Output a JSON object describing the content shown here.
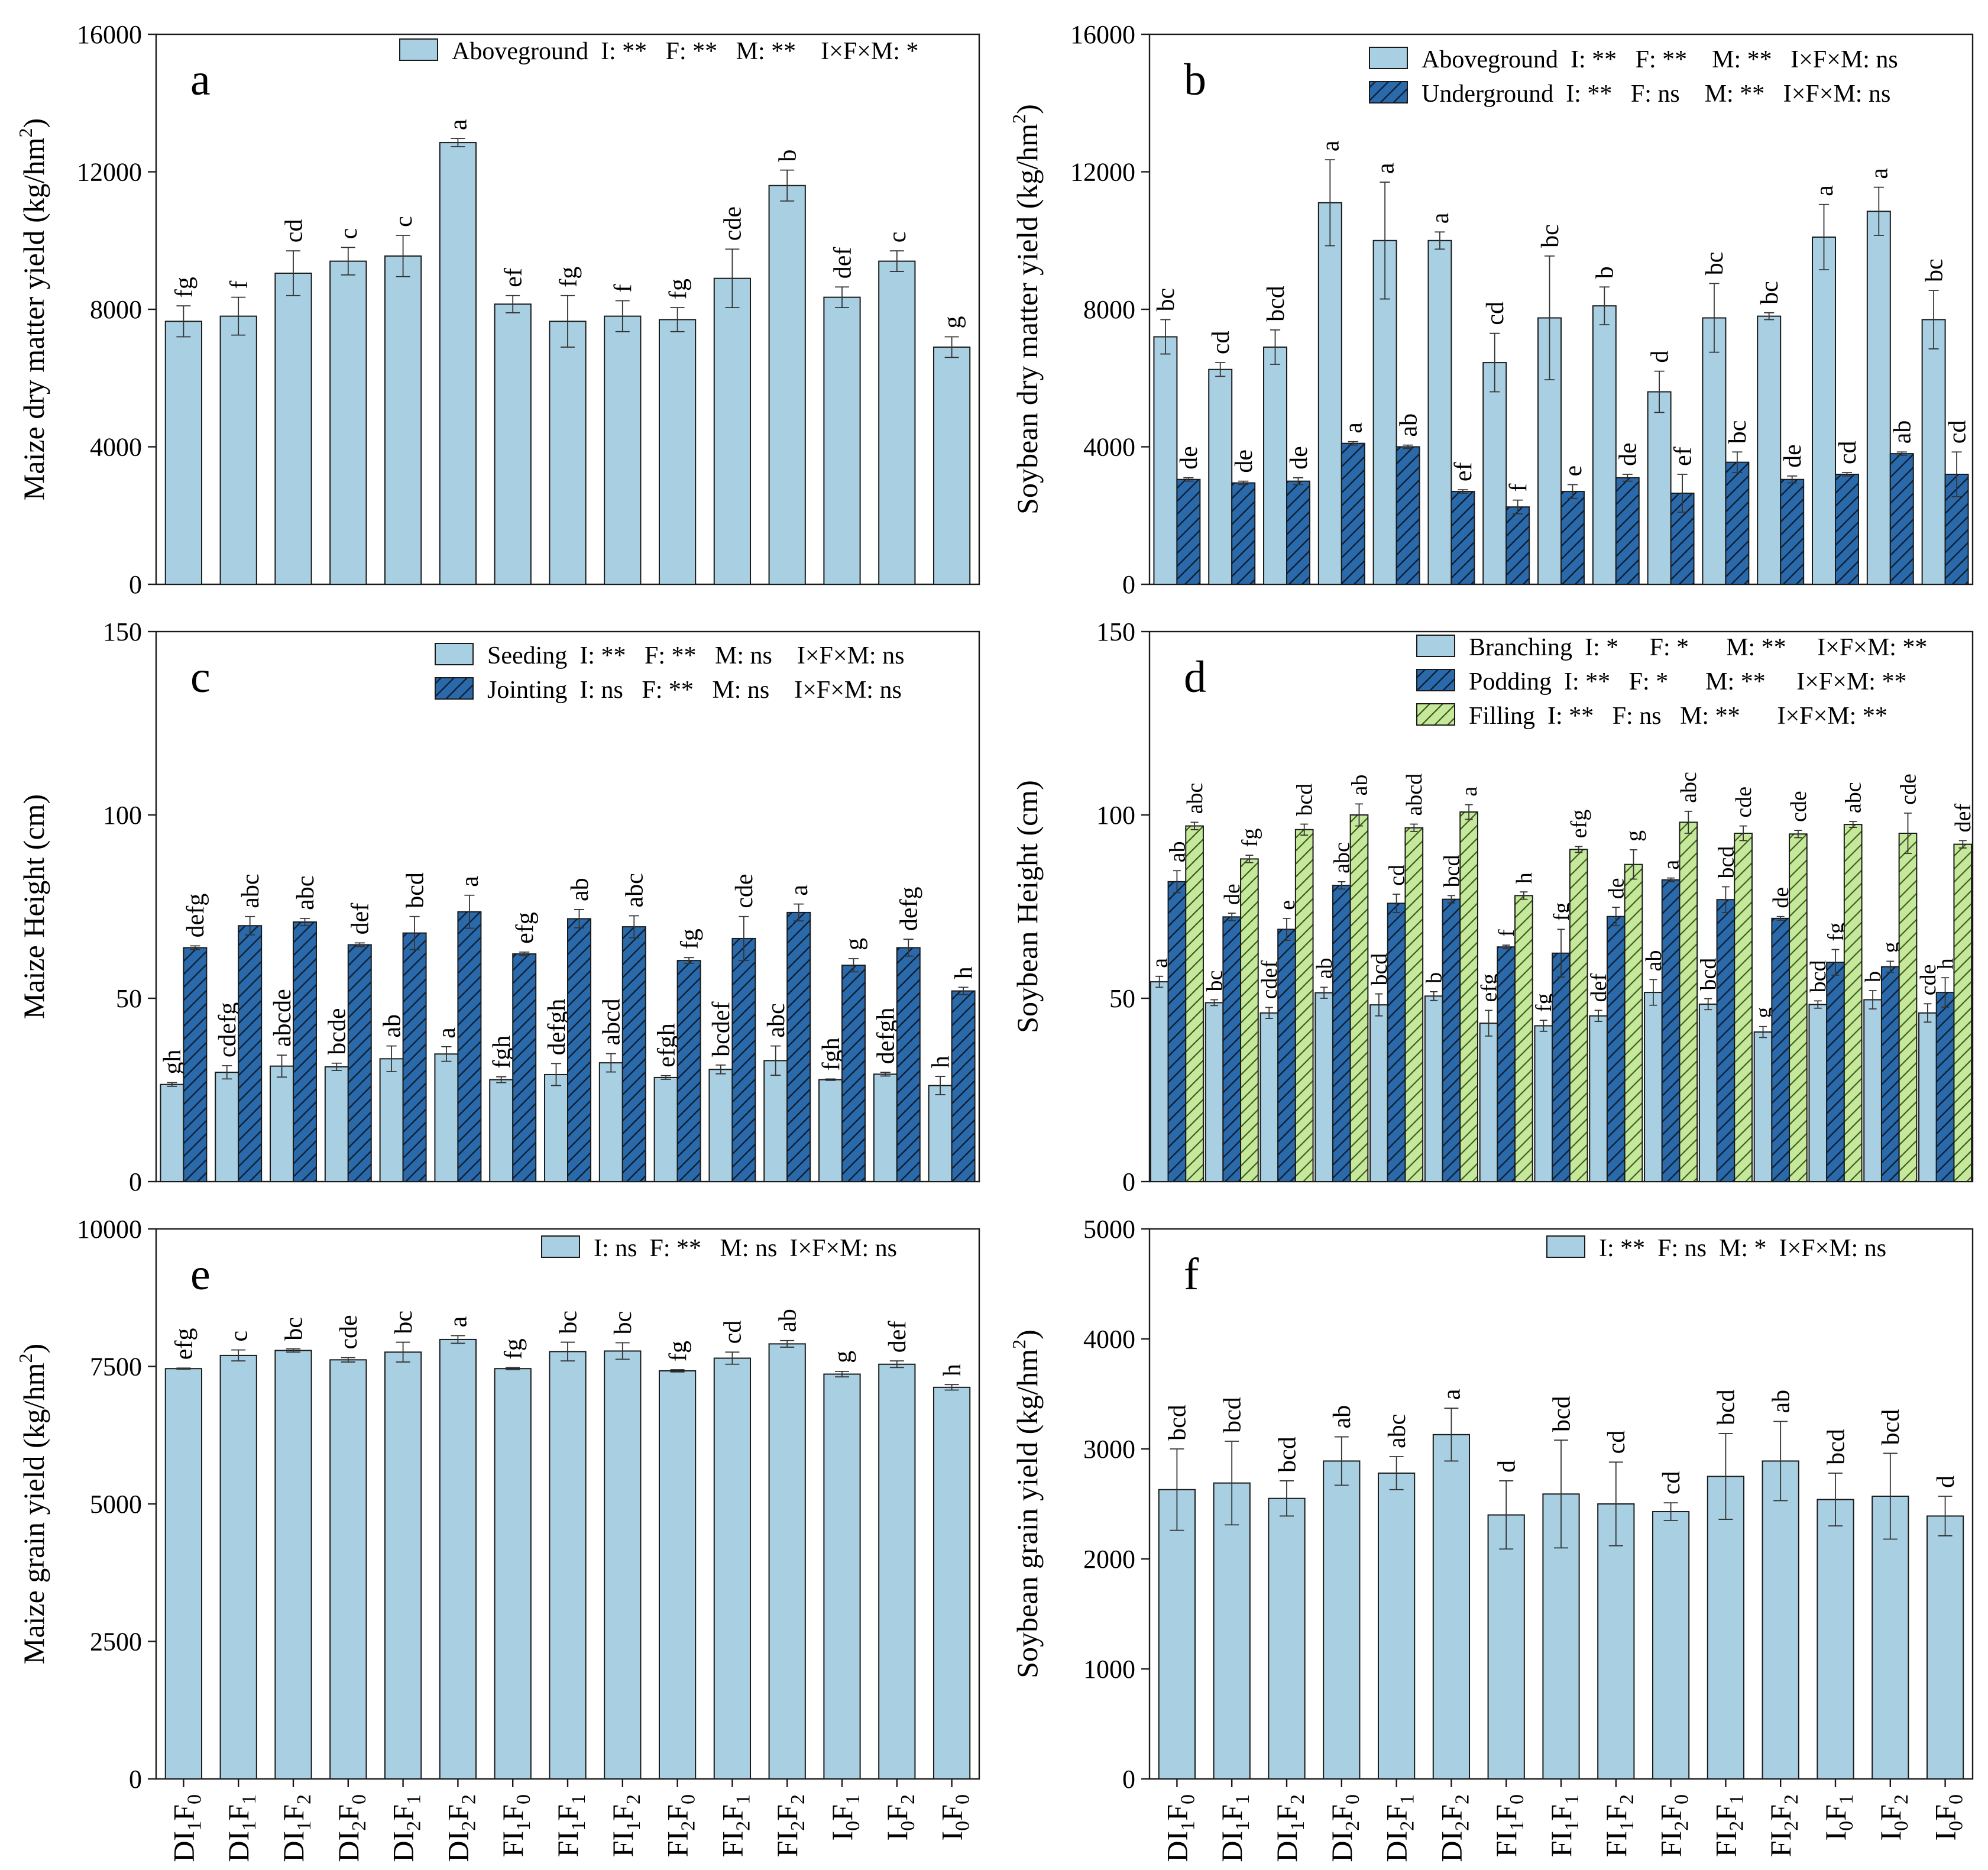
{
  "colors": {
    "light": "#a8cfe2",
    "dark": "#2b6aaa",
    "green": "#c5e89a",
    "stroke": "#1a1a1a",
    "hatch": "#0c1f36"
  },
  "categories": [
    {
      "base": "DI",
      "s1": "1",
      "mid": "F",
      "s2": "0"
    },
    {
      "base": "DI",
      "s1": "1",
      "mid": "F",
      "s2": "1"
    },
    {
      "base": "DI",
      "s1": "1",
      "mid": "F",
      "s2": "2"
    },
    {
      "base": "DI",
      "s1": "2",
      "mid": "F",
      "s2": "0"
    },
    {
      "base": "DI",
      "s1": "2",
      "mid": "F",
      "s2": "1"
    },
    {
      "base": "DI",
      "s1": "2",
      "mid": "F",
      "s2": "2"
    },
    {
      "base": "FI",
      "s1": "1",
      "mid": "F",
      "s2": "0"
    },
    {
      "base": "FI",
      "s1": "1",
      "mid": "F",
      "s2": "1"
    },
    {
      "base": "FI",
      "s1": "1",
      "mid": "F",
      "s2": "2"
    },
    {
      "base": "FI",
      "s1": "2",
      "mid": "F",
      "s2": "0"
    },
    {
      "base": "FI",
      "s1": "2",
      "mid": "F",
      "s2": "1"
    },
    {
      "base": "FI",
      "s1": "2",
      "mid": "F",
      "s2": "2"
    },
    {
      "base": "I",
      "s1": "0",
      "mid": "F",
      "s2": "1"
    },
    {
      "base": "I",
      "s1": "0",
      "mid": "F",
      "s2": "2"
    },
    {
      "base": "I",
      "s1": "0",
      "mid": "F",
      "s2": "0"
    }
  ],
  "chart_data": [
    {
      "id": "a",
      "type": "bar",
      "panel_letter": "a",
      "ylabel": "Maize dry matter yield (kg/hm",
      "ylabel_sup": "2",
      "ylabel_end": ")",
      "ylim": [
        0,
        16000
      ],
      "yticks": [
        0,
        4000,
        8000,
        12000,
        16000
      ],
      "series": [
        {
          "name": "Aboveground",
          "style": "light",
          "stats": "I: **   F: **   M: **    I×F×M: *",
          "values": [
            7650,
            7800,
            9050,
            9400,
            9550,
            12850,
            8150,
            7650,
            7800,
            7700,
            8900,
            11600,
            8350,
            9400,
            6900
          ],
          "errors": [
            450,
            550,
            650,
            400,
            600,
            120,
            250,
            750,
            450,
            350,
            850,
            450,
            300,
            300,
            300
          ],
          "letters": [
            "fg",
            "f",
            "cd",
            "c",
            "c",
            "a",
            "ef",
            "fg",
            "f",
            "fg",
            "cde",
            "b",
            "def",
            "c",
            "g"
          ]
        }
      ]
    },
    {
      "id": "b",
      "type": "bar",
      "panel_letter": "b",
      "ylabel": "Soybean dry matter yield (kg/hm",
      "ylabel_sup": "2",
      "ylabel_end": ")",
      "ylim": [
        0,
        16000
      ],
      "yticks": [
        0,
        4000,
        8000,
        12000,
        16000
      ],
      "series": [
        {
          "name": "Aboveground",
          "style": "light",
          "stats": "I: **   F: **    M: **   I×F×M: ns",
          "values": [
            7200,
            6250,
            6900,
            11100,
            10000,
            10000,
            6450,
            7750,
            8100,
            5600,
            7750,
            7800,
            10100,
            10850,
            7700
          ],
          "errors": [
            500,
            200,
            500,
            1250,
            1700,
            250,
            850,
            1800,
            550,
            600,
            1000,
            100,
            950,
            700,
            850
          ],
          "letters": [
            "bc",
            "cd",
            "bcd",
            "a",
            "a",
            "a",
            "cd",
            "bc",
            "b",
            "d",
            "bc",
            "bc",
            "a",
            "a",
            "bc"
          ]
        },
        {
          "name": "Underground",
          "style": "dark",
          "stats": "I: **   F: ns    M: **   I×F×M: ns",
          "values": [
            3050,
            2950,
            3000,
            4100,
            4000,
            2700,
            2250,
            2700,
            3100,
            2650,
            3550,
            3050,
            3200,
            3800,
            3200
          ],
          "errors": [
            50,
            50,
            100,
            50,
            50,
            50,
            200,
            200,
            100,
            550,
            300,
            100,
            50,
            50,
            650
          ],
          "letters": [
            "de",
            "de",
            "de",
            "a",
            "ab",
            "ef",
            "f",
            "e",
            "de",
            "ef",
            "bc",
            "de",
            "cd",
            "ab",
            "cd"
          ]
        }
      ]
    },
    {
      "id": "c",
      "type": "bar",
      "panel_letter": "c",
      "ylabel": "Maize Height (cm)",
      "ylim": [
        0,
        150
      ],
      "yticks": [
        0,
        50,
        100,
        150
      ],
      "series": [
        {
          "name": "Seeding",
          "style": "light",
          "stats": "I: **   F: **   M: ns    I×F×M: ns",
          "values": [
            26.5,
            29.8,
            31.5,
            31.3,
            33.5,
            34.8,
            27.8,
            29.2,
            32.4,
            28.4,
            30.6,
            33.0,
            27.8,
            29.3,
            26.2
          ],
          "errors": [
            0.5,
            1.8,
            3.0,
            1.0,
            3.5,
            2.0,
            0.8,
            3.0,
            2.5,
            0.5,
            1.2,
            4.0,
            0.2,
            0.5,
            2.5
          ],
          "letters": [
            "gh",
            "cdefg",
            "abcde",
            "bcde",
            "ab",
            "a",
            "fgh",
            "defgh",
            "abcd",
            "efgh",
            "bcdef",
            "abc",
            "fgh",
            "defgh",
            "h"
          ]
        },
        {
          "name": "Jointing",
          "style": "dark",
          "stats": "I: ns   F: **   M: ns    I×F×M: ns",
          "values": [
            63.8,
            69.8,
            70.8,
            64.6,
            67.8,
            73.6,
            62.1,
            71.7,
            69.5,
            60.3,
            66.3,
            73.4,
            59.0,
            63.8,
            52.0
          ],
          "errors": [
            0.5,
            2.5,
            1.0,
            0.5,
            4.5,
            4.5,
            0.5,
            2.5,
            3.0,
            0.8,
            6.0,
            2.3,
            1.8,
            2.3,
            1.0
          ],
          "letters": [
            "defg",
            "abc",
            "abc",
            "def",
            "bcd",
            "a",
            "efg",
            "ab",
            "abc",
            "fg",
            "cde",
            "a",
            "g",
            "defg",
            "h"
          ]
        }
      ]
    },
    {
      "id": "d",
      "type": "bar",
      "panel_letter": "d",
      "ylabel": "Soybean Height (cm)",
      "ylim": [
        0,
        150
      ],
      "yticks": [
        0,
        50,
        100,
        150
      ],
      "series": [
        {
          "name": "Branching",
          "style": "light",
          "stats": "I: *     F: *      M: **     I×F×M: **",
          "values": [
            54.5,
            48.8,
            46.0,
            51.5,
            48.2,
            50.6,
            43.2,
            42.5,
            45.2,
            51.6,
            48.4,
            40.8,
            48.3,
            49.6,
            46.0
          ],
          "errors": [
            1.5,
            0.8,
            1.5,
            1.5,
            3.0,
            1.2,
            3.5,
            1.5,
            1.5,
            3.5,
            1.5,
            1.5,
            1.0,
            2.5,
            2.5
          ],
          "letters": [
            "a",
            "bc",
            "cdef",
            "ab",
            "bcd",
            "b",
            "efg",
            "fg",
            "def",
            "ab",
            "bcd",
            "g",
            "bcd",
            "b",
            "cde"
          ]
        },
        {
          "name": "Podding",
          "style": "dark",
          "stats": "I: **   F: *      M: **     I×F×M: **",
          "values": [
            81.8,
            72.2,
            68.8,
            80.8,
            75.9,
            77.0,
            64.0,
            62.3,
            72.3,
            82.3,
            76.9,
            71.8,
            59.8,
            58.6,
            51.6
          ],
          "errors": [
            3.0,
            1.0,
            3.0,
            1.0,
            2.5,
            1.0,
            0.5,
            6.5,
            2.5,
            0.5,
            3.5,
            0.5,
            3.5,
            1.5,
            4.0
          ],
          "letters": [
            "ab",
            "de",
            "e",
            "abc",
            "cd",
            "bcd",
            "f",
            "fg",
            "de",
            "a",
            "bcd",
            "de",
            "fg",
            "g",
            "h"
          ]
        },
        {
          "name": "Filling",
          "style": "green",
          "stats": "I: **   F: ns   M: **      I×F×M: **",
          "values": [
            97.0,
            88.0,
            96.0,
            100.0,
            96.5,
            100.8,
            78.0,
            90.6,
            86.5,
            98.0,
            95.0,
            94.8,
            97.4,
            95.0,
            92.0
          ],
          "errors": [
            1.0,
            1.0,
            1.5,
            3.0,
            1.0,
            2.0,
            1.0,
            0.8,
            4.0,
            3.0,
            2.0,
            1.0,
            0.8,
            5.5,
            1.0
          ],
          "letters": [
            "abc",
            "fg",
            "bcd",
            "ab",
            "abcd",
            "a",
            "h",
            "efg",
            "g",
            "abc",
            "cde",
            "cde",
            "abc",
            "cde",
            "def"
          ]
        }
      ]
    },
    {
      "id": "e",
      "type": "bar",
      "panel_letter": "e",
      "ylabel": "Maize grain yield (kg/hm",
      "ylabel_sup": "2",
      "ylabel_end": ")",
      "ylim": [
        0,
        10000
      ],
      "yticks": [
        0,
        2500,
        5000,
        7500,
        10000
      ],
      "series": [
        {
          "name": "",
          "style": "light",
          "stats": "I: ns  F: **   M: ns  I×F×M: ns",
          "values": [
            7460,
            7700,
            7790,
            7620,
            7760,
            7990,
            7460,
            7770,
            7780,
            7420,
            7650,
            7910,
            7360,
            7540,
            7120
          ],
          "errors": [
            10,
            100,
            30,
            40,
            180,
            70,
            20,
            170,
            150,
            20,
            110,
            60,
            50,
            60,
            50
          ],
          "letters": [
            "efg",
            "c",
            "bc",
            "cde",
            "bc",
            "a",
            "fg",
            "bc",
            "bc",
            "fg",
            "cd",
            "ab",
            "g",
            "def",
            "h"
          ]
        }
      ]
    },
    {
      "id": "f",
      "type": "bar",
      "panel_letter": "f",
      "ylabel": "Soybean grain yield (kg/hm",
      "ylabel_sup": "2",
      "ylabel_end": ")",
      "ylim": [
        0,
        5000
      ],
      "yticks": [
        0,
        1000,
        2000,
        3000,
        4000,
        5000
      ],
      "series": [
        {
          "name": "",
          "style": "light",
          "stats": "I: **  F: ns  M: *  I×F×M: ns",
          "values": [
            2630,
            2690,
            2550,
            2890,
            2780,
            3130,
            2400,
            2590,
            2500,
            2430,
            2750,
            2890,
            2540,
            2570,
            2390
          ],
          "errors": [
            370,
            380,
            160,
            220,
            150,
            240,
            310,
            490,
            380,
            80,
            390,
            360,
            240,
            390,
            180
          ],
          "letters": [
            "bcd",
            "bcd",
            "bcd",
            "ab",
            "abc",
            "a",
            "d",
            "bcd",
            "cd",
            "cd",
            "bcd",
            "ab",
            "bcd",
            "bcd",
            "d"
          ]
        }
      ]
    }
  ]
}
